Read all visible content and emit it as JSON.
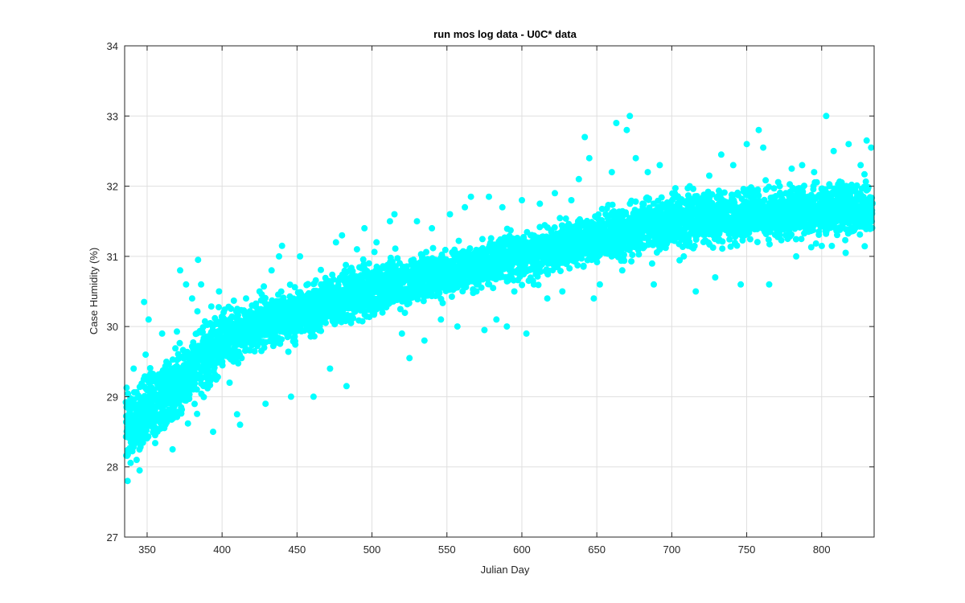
{
  "chart_data": {
    "type": "scatter",
    "title": "run mos log data - U0C* data",
    "xlabel": "Julian Day",
    "ylabel": "Case Humidity (%)",
    "xlim": [
      335,
      835
    ],
    "ylim": [
      27,
      34
    ],
    "xticks": [
      350,
      400,
      450,
      500,
      550,
      600,
      650,
      700,
      750,
      800
    ],
    "yticks": [
      27,
      28,
      29,
      30,
      31,
      32,
      33,
      34
    ],
    "grid": true,
    "marker_color": "#00FFFF",
    "series": [
      {
        "name": "",
        "points": [
          [
            337,
            27.8
          ],
          [
            339,
            28.5
          ],
          [
            341,
            29.4
          ],
          [
            343,
            28.1
          ],
          [
            345,
            27.95
          ],
          [
            347,
            28.8
          ],
          [
            348,
            30.35
          ],
          [
            349,
            29.6
          ],
          [
            351,
            30.1
          ],
          [
            355,
            28.7
          ],
          [
            360,
            29.9
          ],
          [
            367,
            28.25
          ],
          [
            372,
            30.8
          ],
          [
            376,
            30.6
          ],
          [
            380,
            30.4
          ],
          [
            384,
            30.95
          ],
          [
            386,
            30.6
          ],
          [
            390,
            29.8
          ],
          [
            394,
            28.5
          ],
          [
            398,
            30.5
          ],
          [
            405,
            29.2
          ],
          [
            410,
            28.75
          ],
          [
            412,
            28.6
          ],
          [
            416,
            30.4
          ],
          [
            420,
            30.3
          ],
          [
            425,
            30.5
          ],
          [
            429,
            28.9
          ],
          [
            433,
            30.8
          ],
          [
            438,
            31.0
          ],
          [
            440,
            31.15
          ],
          [
            446,
            29.0
          ],
          [
            452,
            31.0
          ],
          [
            456,
            30.1
          ],
          [
            461,
            29.0
          ],
          [
            466,
            30.6
          ],
          [
            472,
            29.4
          ],
          [
            476,
            31.2
          ],
          [
            480,
            31.3
          ],
          [
            483,
            29.15
          ],
          [
            486,
            30.6
          ],
          [
            490,
            31.1
          ],
          [
            495,
            31.4
          ],
          [
            498,
            30.9
          ],
          [
            503,
            31.2
          ],
          [
            507,
            30.2
          ],
          [
            512,
            31.5
          ],
          [
            515,
            31.6
          ],
          [
            520,
            29.9
          ],
          [
            525,
            29.55
          ],
          [
            530,
            31.5
          ],
          [
            535,
            29.8
          ],
          [
            540,
            31.4
          ],
          [
            546,
            30.1
          ],
          [
            552,
            31.6
          ],
          [
            557,
            30.0
          ],
          [
            562,
            31.7
          ],
          [
            566,
            31.85
          ],
          [
            570,
            30.6
          ],
          [
            575,
            29.95
          ],
          [
            578,
            31.85
          ],
          [
            583,
            30.1
          ],
          [
            587,
            31.7
          ],
          [
            590,
            30.0
          ],
          [
            595,
            30.5
          ],
          [
            600,
            31.8
          ],
          [
            603,
            29.9
          ],
          [
            608,
            30.6
          ],
          [
            612,
            31.75
          ],
          [
            617,
            30.4
          ],
          [
            622,
            31.9
          ],
          [
            627,
            30.5
          ],
          [
            633,
            31.8
          ],
          [
            638,
            32.1
          ],
          [
            642,
            32.7
          ],
          [
            645,
            32.4
          ],
          [
            648,
            30.4
          ],
          [
            652,
            30.6
          ],
          [
            655,
            31.3
          ],
          [
            660,
            32.2
          ],
          [
            663,
            32.9
          ],
          [
            667,
            30.8
          ],
          [
            670,
            32.8
          ],
          [
            672,
            33.0
          ],
          [
            676,
            32.4
          ],
          [
            680,
            31.4
          ],
          [
            684,
            32.2
          ],
          [
            688,
            30.6
          ],
          [
            692,
            32.3
          ],
          [
            697,
            31.2
          ],
          [
            702,
            31.9
          ],
          [
            708,
            31.0
          ],
          [
            712,
            32.0
          ],
          [
            716,
            30.5
          ],
          [
            720,
            31.8
          ],
          [
            725,
            32.15
          ],
          [
            729,
            30.7
          ],
          [
            733,
            32.45
          ],
          [
            737,
            31.4
          ],
          [
            741,
            32.3
          ],
          [
            746,
            30.6
          ],
          [
            750,
            32.6
          ],
          [
            754,
            31.6
          ],
          [
            758,
            32.8
          ],
          [
            761,
            32.55
          ],
          [
            765,
            30.6
          ],
          [
            768,
            31.8
          ],
          [
            772,
            32.0
          ],
          [
            776,
            31.3
          ],
          [
            780,
            32.25
          ],
          [
            783,
            31.0
          ],
          [
            787,
            32.3
          ],
          [
            791,
            31.6
          ],
          [
            795,
            32.2
          ],
          [
            800,
            31.5
          ],
          [
            803,
            33.0
          ],
          [
            806,
            31.8
          ],
          [
            808,
            32.5
          ],
          [
            812,
            31.9
          ],
          [
            816,
            31.05
          ],
          [
            818,
            32.6
          ],
          [
            822,
            31.4
          ],
          [
            826,
            32.3
          ],
          [
            830,
            32.65
          ],
          [
            833,
            32.55
          ]
        ]
      }
    ]
  }
}
